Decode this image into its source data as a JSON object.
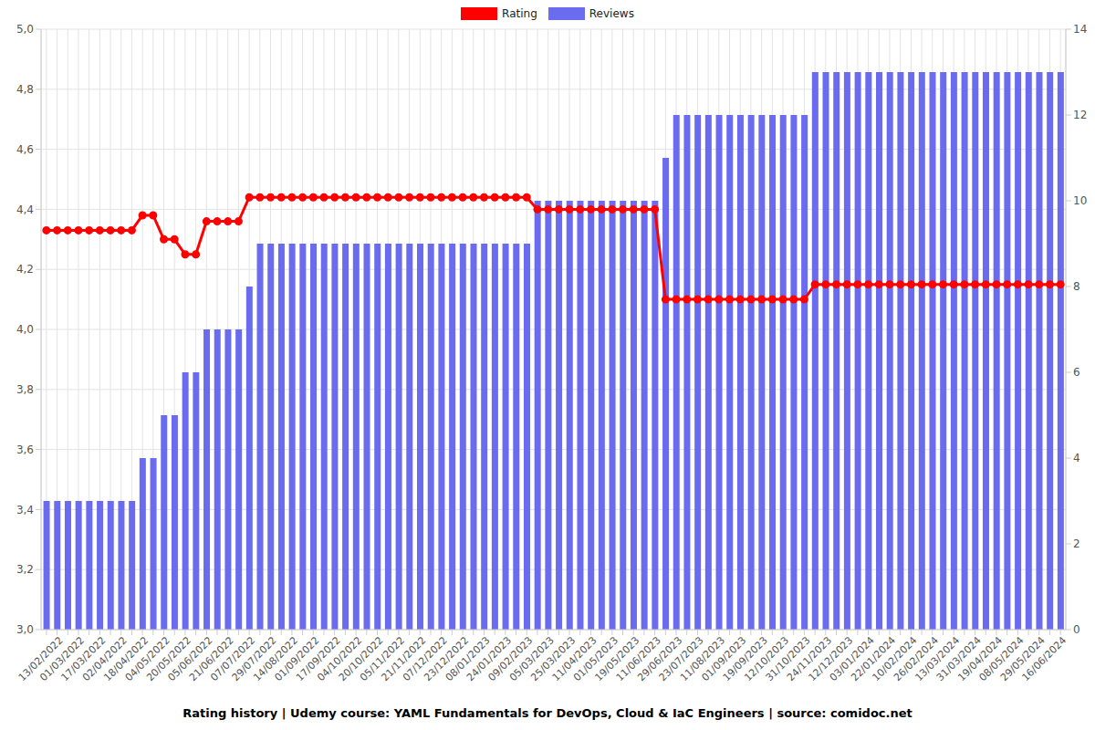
{
  "chart_data": {
    "type": "bar",
    "title": "Rating history | Udemy course: YAML Fundamentals for DevOps, Cloud & IaC Engineers | source: comidoc.net",
    "categories": [
      null,
      "13/02/2022",
      null,
      "01/03/2022",
      null,
      "17/03/2022",
      null,
      "02/04/2022",
      null,
      "18/04/2022",
      null,
      "04/05/2022",
      null,
      "20/05/2022",
      null,
      "05/06/2022",
      null,
      "21/06/2022",
      null,
      "07/07/2022",
      null,
      "29/07/2022",
      null,
      "14/08/2022",
      null,
      "01/09/2022",
      null,
      "17/09/2022",
      null,
      "04/10/2022",
      null,
      "20/10/2022",
      null,
      "05/11/2022",
      null,
      "21/11/2022",
      null,
      "07/12/2022",
      null,
      "23/12/2022",
      null,
      "08/01/2023",
      null,
      "24/01/2023",
      null,
      "09/02/2023",
      null,
      "05/03/2023",
      null,
      "25/03/2023",
      null,
      "11/04/2023",
      null,
      "01/05/2023",
      null,
      "19/05/2023",
      null,
      "11/06/2023",
      null,
      "29/06/2023",
      null,
      "23/07/2023",
      null,
      "11/08/2023",
      null,
      "01/09/2023",
      null,
      "19/09/2023",
      null,
      "12/10/2023",
      null,
      "31/10/2023",
      null,
      "24/11/2023",
      null,
      "12/12/2023",
      null,
      "03/01/2024",
      null,
      "22/01/2024",
      null,
      "10/02/2024",
      null,
      "26/02/2024",
      null,
      "13/03/2024",
      null,
      "31/03/2024",
      null,
      "19/04/2024",
      null,
      "08/05/2024",
      null,
      "29/05/2024",
      null,
      "16/06/2024"
    ],
    "series": [
      {
        "name": "Rating",
        "type": "line",
        "color": "#ff0000",
        "marker": "circle",
        "values": [
          4.33,
          4.33,
          4.33,
          4.33,
          4.33,
          4.33,
          4.33,
          4.33,
          4.33,
          4.38,
          4.38,
          4.3,
          4.3,
          4.25,
          4.25,
          4.36,
          4.36,
          4.36,
          4.36,
          4.44,
          4.44,
          4.44,
          4.44,
          4.44,
          4.44,
          4.44,
          4.44,
          4.44,
          4.44,
          4.44,
          4.44,
          4.44,
          4.44,
          4.44,
          4.44,
          4.44,
          4.44,
          4.44,
          4.44,
          4.44,
          4.44,
          4.44,
          4.44,
          4.44,
          4.44,
          4.44,
          4.4,
          4.4,
          4.4,
          4.4,
          4.4,
          4.4,
          4.4,
          4.4,
          4.4,
          4.4,
          4.4,
          4.4,
          4.1,
          4.1,
          4.1,
          4.1,
          4.1,
          4.1,
          4.1,
          4.1,
          4.1,
          4.1,
          4.1,
          4.1,
          4.1,
          4.1,
          4.15,
          4.15,
          4.15,
          4.15,
          4.15,
          4.15,
          4.15,
          4.15,
          4.15,
          4.15,
          4.15,
          4.15,
          4.15,
          4.15,
          4.15,
          4.15,
          4.15,
          4.15,
          4.15,
          4.15,
          4.15,
          4.15,
          4.15,
          4.15
        ]
      },
      {
        "name": "Reviews",
        "type": "bar",
        "color": "#6b6bef",
        "axis": "y2",
        "values": [
          3,
          3,
          3,
          3,
          3,
          3,
          3,
          3,
          3,
          4,
          4,
          5,
          5,
          6,
          6,
          7,
          7,
          7,
          7,
          8,
          9,
          9,
          9,
          9,
          9,
          9,
          9,
          9,
          9,
          9,
          9,
          9,
          9,
          9,
          9,
          9,
          9,
          9,
          9,
          9,
          9,
          9,
          9,
          9,
          9,
          9,
          10,
          10,
          10,
          10,
          10,
          10,
          10,
          10,
          10,
          10,
          10,
          10,
          11,
          12,
          12,
          12,
          12,
          12,
          12,
          12,
          12,
          12,
          12,
          12,
          12,
          12,
          13,
          13,
          13,
          13,
          13,
          13,
          13,
          13,
          13,
          13,
          13,
          13,
          13,
          13,
          13,
          13,
          13,
          13,
          13,
          13,
          13,
          13,
          13,
          13
        ]
      }
    ],
    "ylim": [
      3,
      5
    ],
    "yticks": [
      {
        "value": 3,
        "label": "3,0"
      },
      {
        "value": 3.2,
        "label": "3,2"
      },
      {
        "value": 3.4,
        "label": "3,4"
      },
      {
        "value": 3.6,
        "label": "3,6"
      },
      {
        "value": 3.8,
        "label": "3,8"
      },
      {
        "value": 4,
        "label": "4,0"
      },
      {
        "value": 4.2,
        "label": "4,2"
      },
      {
        "value": 4.4,
        "label": "4,4"
      },
      {
        "value": 4.6,
        "label": "4,6"
      },
      {
        "value": 4.8,
        "label": "4,8"
      },
      {
        "value": 5,
        "label": "5,0"
      }
    ],
    "y2lim": [
      0,
      14
    ],
    "y2ticks": [
      0,
      2,
      4,
      6,
      8,
      10,
      12,
      14
    ],
    "grid": true,
    "legend": "top"
  }
}
